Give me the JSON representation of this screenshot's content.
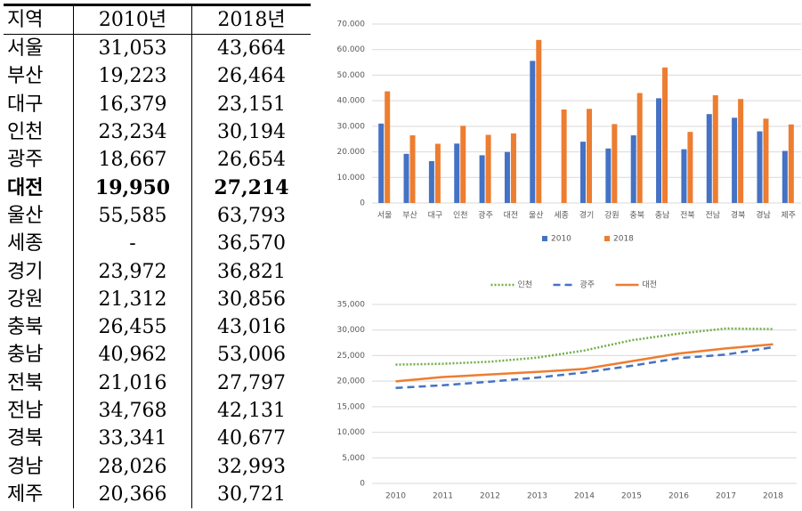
{
  "table": {
    "header": [
      "지역",
      "2010년",
      "2018년"
    ],
    "rows": [
      [
        "서울",
        "31,053",
        "43,664"
      ],
      [
        "부산",
        "19,223",
        "26,464"
      ],
      [
        "대구",
        "16,379",
        "23,151"
      ],
      [
        "인천",
        "23,234",
        "30,194"
      ],
      [
        "광주",
        "18,667",
        "26,654"
      ],
      [
        "대전",
        "19,950",
        "27,214"
      ],
      [
        "울산",
        "55,585",
        "63,793"
      ],
      [
        "세종",
        "-",
        "36,570"
      ],
      [
        "경기",
        "23,972",
        "36,821"
      ],
      [
        "강원",
        "21,312",
        "30,856"
      ],
      [
        "충북",
        "26,455",
        "43,016"
      ],
      [
        "충남",
        "40,962",
        "53,006"
      ],
      [
        "전북",
        "21,016",
        "27,797"
      ],
      [
        "전남",
        "34,768",
        "42,131"
      ],
      [
        "경북",
        "33,341",
        "40,677"
      ],
      [
        "경남",
        "28,026",
        "32,993"
      ],
      [
        "제주",
        "20,366",
        "30,721"
      ]
    ]
  },
  "chart_data": [
    {
      "type": "bar",
      "categories": [
        "서울",
        "부산",
        "대구",
        "인천",
        "광주",
        "대전",
        "울산",
        "세종",
        "경기",
        "강원",
        "충북",
        "충남",
        "전북",
        "전남",
        "경북",
        "경남",
        "제주"
      ],
      "series": [
        {
          "name": "2010",
          "color": "#4472c4",
          "values": [
            31053,
            19223,
            16379,
            23234,
            18667,
            19950,
            55585,
            null,
            23972,
            21312,
            26455,
            40962,
            21016,
            34768,
            33341,
            28026,
            20366
          ]
        },
        {
          "name": "2018",
          "color": "#ed7d31",
          "values": [
            43664,
            26464,
            23151,
            30194,
            26654,
            27214,
            63793,
            36570,
            36821,
            30856,
            43016,
            53006,
            27797,
            42131,
            40677,
            32993,
            30721
          ]
        }
      ],
      "ylim": [
        0,
        70000
      ],
      "yticks": [
        0,
        {
          "value": 10000,
          "label": "10.000"
        },
        {
          "value": 20000,
          "label": "20.000"
        },
        {
          "value": 30000,
          "label": "30.000"
        },
        {
          "value": 40000,
          "label": "40.000"
        },
        {
          "value": 50000,
          "label": "50.000"
        },
        {
          "value": 60000,
          "label": "60.000"
        },
        {
          "value": 70000,
          "label": "70.000"
        }
      ],
      "grid": true,
      "legend": "bottom"
    },
    {
      "type": "line",
      "x": [
        2010,
        2011,
        2012,
        2013,
        2014,
        2015,
        2016,
        2017,
        2018
      ],
      "xlim": [
        2009.5,
        2018.5
      ],
      "series": [
        {
          "name": "인천",
          "color": "#70ad47",
          "style": "dotted",
          "values": [
            23234,
            23400,
            23800,
            24600,
            26000,
            28000,
            29300,
            30300,
            30194
          ]
        },
        {
          "name": "광주",
          "color": "#4472c4",
          "style": "dashed",
          "values": [
            18667,
            19200,
            19900,
            20700,
            21700,
            23000,
            24500,
            25200,
            26654
          ]
        },
        {
          "name": "대전",
          "color": "#ed7d31",
          "style": "solid",
          "values": [
            19950,
            20800,
            21300,
            21800,
            22400,
            23900,
            25400,
            26400,
            27214
          ]
        }
      ],
      "ylim": [
        0,
        35000
      ],
      "yticks": [
        0,
        {
          "value": 5000,
          "label": "5,000"
        },
        {
          "value": 10000,
          "label": "10,000"
        },
        {
          "value": 15000,
          "label": "15,000"
        },
        {
          "value": 20000,
          "label": "20,000"
        },
        {
          "value": 25000,
          "label": "25,000"
        },
        {
          "value": 30000,
          "label": "30,000"
        },
        {
          "value": 35000,
          "label": "35,000"
        }
      ],
      "grid": true,
      "legend": "top"
    }
  ]
}
